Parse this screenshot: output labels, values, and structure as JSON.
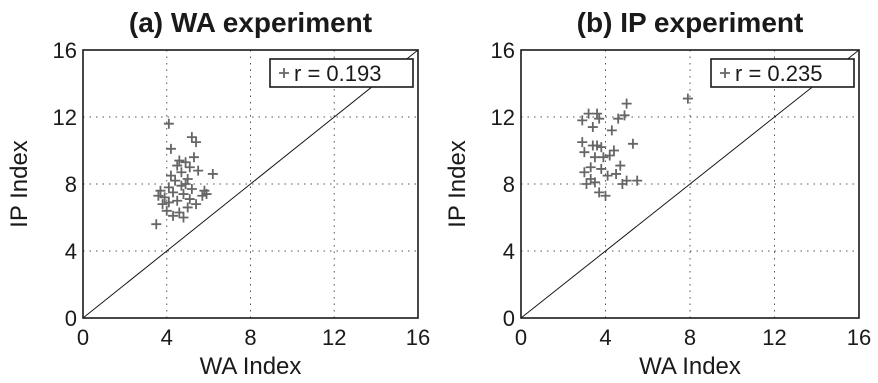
{
  "chart_data": [
    {
      "type": "scatter",
      "title": "(a) WA experiment",
      "xlabel": "WA Index",
      "ylabel": "IP Index",
      "xlim": [
        0,
        16
      ],
      "ylim": [
        0,
        16
      ],
      "xticks": [
        "0",
        "4",
        "8",
        "12",
        "16"
      ],
      "yticks": [
        "0",
        "4",
        "8",
        "12",
        "16"
      ],
      "grid": true,
      "reference_line": "y = x",
      "legend": {
        "label": "r = 0.193",
        "marker": "+",
        "position": "top-right"
      },
      "points": [
        [
          3.5,
          5.6
        ],
        [
          3.6,
          7.3
        ],
        [
          3.7,
          7.6
        ],
        [
          3.8,
          6.8
        ],
        [
          3.9,
          7.2
        ],
        [
          4.0,
          6.4
        ],
        [
          4.1,
          6.9
        ],
        [
          4.1,
          7.8
        ],
        [
          4.2,
          8.5
        ],
        [
          4.2,
          10.1
        ],
        [
          4.1,
          11.6
        ],
        [
          4.3,
          6.1
        ],
        [
          4.3,
          7.5
        ],
        [
          4.4,
          8.2
        ],
        [
          4.5,
          9.1
        ],
        [
          4.5,
          7.0
        ],
        [
          4.6,
          6.3
        ],
        [
          4.6,
          9.4
        ],
        [
          4.7,
          7.9
        ],
        [
          4.7,
          8.7
        ],
        [
          4.8,
          6.0
        ],
        [
          4.8,
          7.4
        ],
        [
          4.9,
          9.3
        ],
        [
          4.9,
          8.0
        ],
        [
          5.0,
          6.6
        ],
        [
          5.0,
          8.3
        ],
        [
          5.1,
          7.1
        ],
        [
          5.1,
          9.0
        ],
        [
          5.2,
          10.8
        ],
        [
          5.2,
          7.7
        ],
        [
          5.3,
          9.6
        ],
        [
          5.4,
          6.8
        ],
        [
          5.4,
          10.5
        ],
        [
          5.5,
          8.8
        ],
        [
          5.7,
          7.3
        ],
        [
          5.8,
          7.6
        ],
        [
          5.9,
          7.4
        ],
        [
          6.2,
          8.6
        ]
      ]
    },
    {
      "type": "scatter",
      "title": "(b) IP experiment",
      "xlabel": "WA Index",
      "ylabel": "IP Index",
      "xlim": [
        0,
        16
      ],
      "ylim": [
        0,
        16
      ],
      "xticks": [
        "0",
        "4",
        "8",
        "12",
        "16"
      ],
      "yticks": [
        "0",
        "4",
        "8",
        "12",
        "16"
      ],
      "grid": true,
      "reference_line": "y = x",
      "legend": {
        "label": "r = 0.235",
        "marker": "+",
        "position": "top-right"
      },
      "points": [
        [
          2.9,
          10.5
        ],
        [
          2.9,
          11.8
        ],
        [
          3.0,
          8.7
        ],
        [
          3.0,
          9.9
        ],
        [
          3.1,
          8.0
        ],
        [
          3.2,
          12.2
        ],
        [
          3.3,
          9.0
        ],
        [
          3.3,
          8.3
        ],
        [
          3.4,
          11.4
        ],
        [
          3.4,
          10.3
        ],
        [
          3.5,
          9.6
        ],
        [
          3.5,
          8.1
        ],
        [
          3.6,
          12.2
        ],
        [
          3.6,
          10.3
        ],
        [
          3.7,
          7.5
        ],
        [
          3.7,
          11.9
        ],
        [
          3.8,
          10.2
        ],
        [
          3.8,
          8.9
        ],
        [
          3.9,
          9.6
        ],
        [
          4.0,
          7.3
        ],
        [
          4.1,
          8.5
        ],
        [
          4.2,
          9.7
        ],
        [
          4.3,
          11.2
        ],
        [
          4.4,
          10.0
        ],
        [
          4.5,
          8.6
        ],
        [
          4.6,
          11.9
        ],
        [
          4.7,
          9.1
        ],
        [
          4.8,
          8.0
        ],
        [
          4.9,
          12.1
        ],
        [
          5.0,
          12.8
        ],
        [
          5.0,
          8.2
        ],
        [
          5.3,
          10.4
        ],
        [
          5.5,
          8.2
        ],
        [
          7.9,
          13.1
        ]
      ]
    }
  ]
}
